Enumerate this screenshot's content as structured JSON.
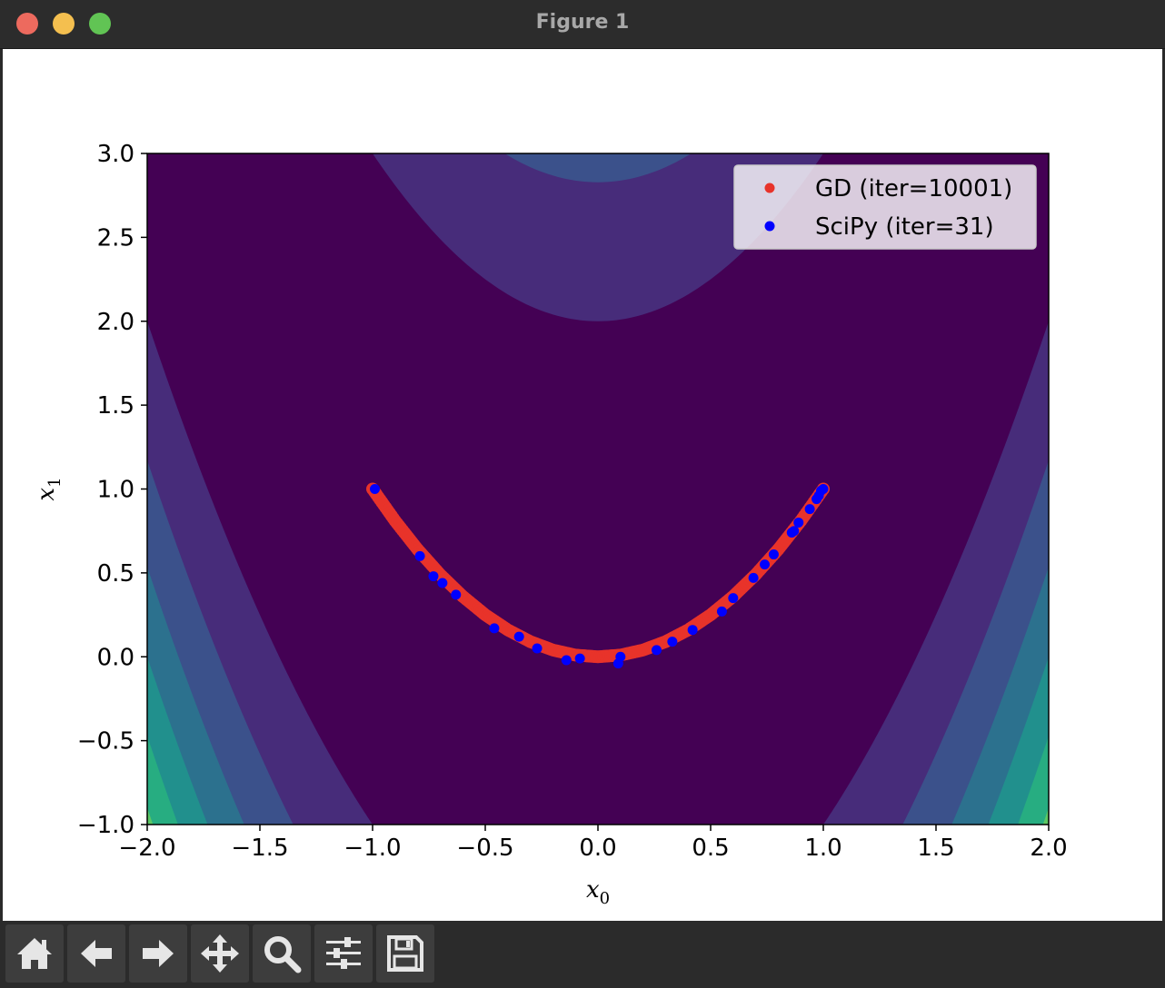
{
  "window": {
    "title": "Figure 1"
  },
  "toolbar": {
    "buttons": [
      {
        "name": "home",
        "icon": "home-icon"
      },
      {
        "name": "back",
        "icon": "arrow-left-icon"
      },
      {
        "name": "forward",
        "icon": "arrow-right-icon"
      },
      {
        "name": "pan",
        "icon": "move-icon"
      },
      {
        "name": "zoom",
        "icon": "magnifier-icon"
      },
      {
        "name": "configure",
        "icon": "sliders-icon"
      },
      {
        "name": "save",
        "icon": "floppy-disk-icon"
      }
    ]
  },
  "chart_data": {
    "type": "scatter",
    "title": "",
    "xlabel": "x_0",
    "ylabel": "x_1",
    "xlim": [
      -2.0,
      2.0
    ],
    "ylim": [
      -1.0,
      3.0
    ],
    "xticks": [
      "−2.0",
      "−1.5",
      "−1.0",
      "−0.5",
      "0.0",
      "0.5",
      "1.0",
      "1.5",
      "2.0"
    ],
    "yticks": [
      "−1.0",
      "−0.5",
      "0.0",
      "0.5",
      "1.0",
      "1.5",
      "2.0",
      "2.5",
      "3.0"
    ],
    "background": "filled contour of the Rosenbrock function (viridis colormap)",
    "colors": {
      "gd": "#e8332a",
      "scipy": "#0000ff"
    },
    "legend_position": "upper right",
    "series": [
      {
        "name": "GD (iter=10001)",
        "color": "#e8332a",
        "marker": "dense dots forming a thick line",
        "x": [
          -1.0,
          -0.9,
          -0.8,
          -0.7,
          -0.6,
          -0.5,
          -0.4,
          -0.3,
          -0.2,
          -0.1,
          0.0,
          0.1,
          0.2,
          0.3,
          0.4,
          0.5,
          0.6,
          0.7,
          0.8,
          0.9,
          1.0
        ],
        "y": [
          1.0,
          0.81,
          0.64,
          0.49,
          0.36,
          0.25,
          0.16,
          0.09,
          0.04,
          0.01,
          0.0,
          0.01,
          0.04,
          0.09,
          0.16,
          0.25,
          0.36,
          0.49,
          0.64,
          0.81,
          1.0
        ]
      },
      {
        "name": "SciPy (iter=31)",
        "color": "#0000ff",
        "marker": "dot",
        "x": [
          -0.99,
          -0.79,
          -0.73,
          -0.69,
          -0.63,
          -0.46,
          -0.35,
          -0.27,
          -0.14,
          -0.08,
          0.09,
          0.1,
          0.26,
          0.33,
          0.42,
          0.55,
          0.6,
          0.69,
          0.74,
          0.78,
          0.86,
          0.87,
          0.89,
          0.94,
          0.97,
          0.98,
          0.99,
          1.0
        ],
        "y": [
          1.0,
          0.6,
          0.48,
          0.44,
          0.37,
          0.17,
          0.12,
          0.05,
          -0.02,
          -0.01,
          -0.04,
          0.0,
          0.04,
          0.09,
          0.16,
          0.27,
          0.35,
          0.47,
          0.55,
          0.61,
          0.74,
          0.75,
          0.8,
          0.88,
          0.94,
          0.96,
          0.99,
          1.0
        ]
      }
    ]
  }
}
